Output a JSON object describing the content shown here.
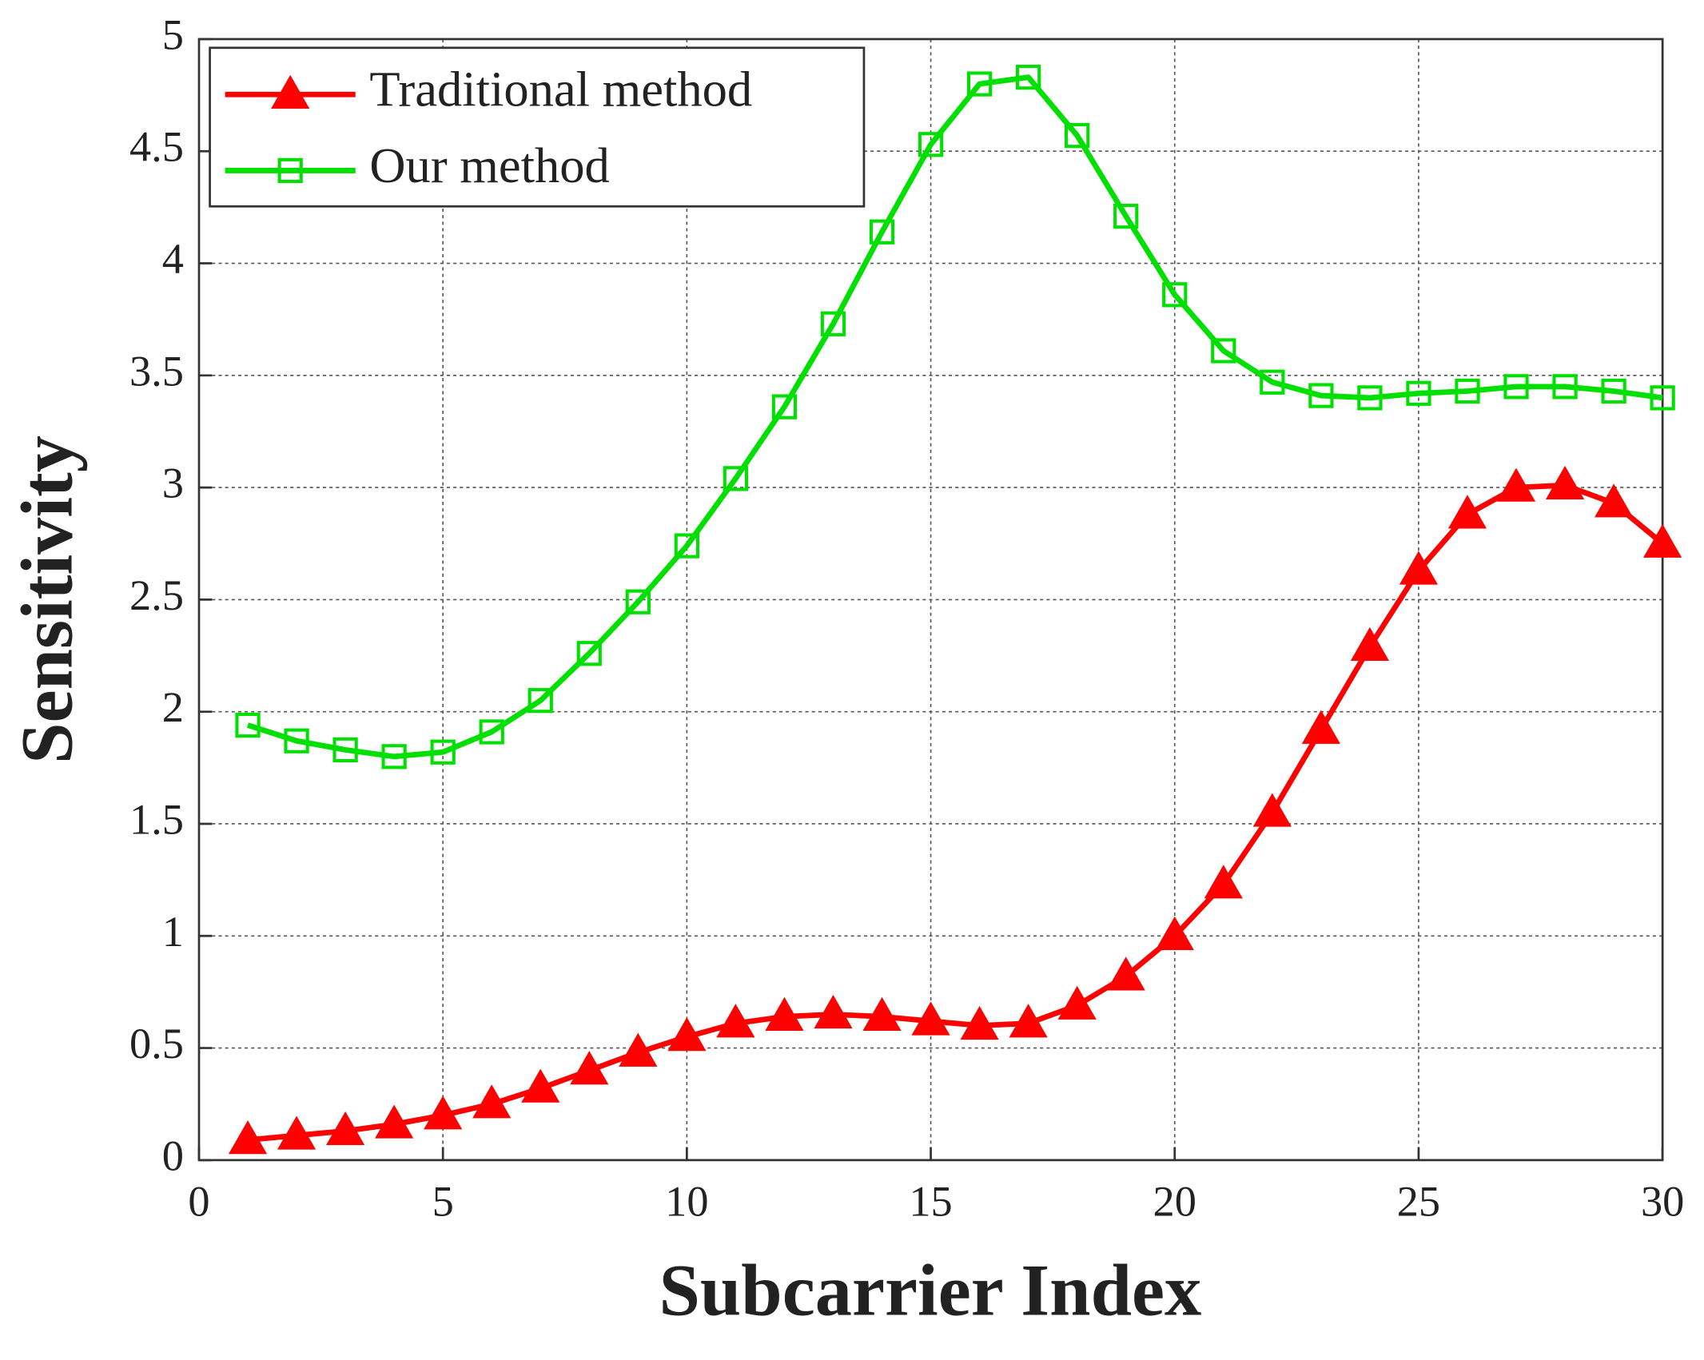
{
  "chart_data": {
    "type": "line",
    "x_label": "Subcarrier Index",
    "y_label": "Sensitivity",
    "x": [
      1,
      2,
      3,
      4,
      5,
      6,
      7,
      8,
      9,
      10,
      11,
      12,
      13,
      14,
      15,
      16,
      17,
      18,
      19,
      20,
      21,
      22,
      23,
      24,
      25,
      26,
      27,
      28,
      29,
      30
    ],
    "series": [
      {
        "name": "Traditional method",
        "color": "#ff0000",
        "marker": "triangle",
        "values": [
          0.09,
          0.11,
          0.13,
          0.16,
          0.2,
          0.25,
          0.32,
          0.4,
          0.48,
          0.55,
          0.61,
          0.64,
          0.65,
          0.64,
          0.62,
          0.6,
          0.61,
          0.69,
          0.82,
          1.0,
          1.23,
          1.55,
          1.92,
          2.29,
          2.63,
          2.88,
          3.0,
          3.01,
          2.93,
          2.75
        ]
      },
      {
        "name": "Our method",
        "color": "#00e000",
        "marker": "square",
        "values": [
          1.94,
          1.87,
          1.83,
          1.8,
          1.82,
          1.91,
          2.05,
          2.26,
          2.49,
          2.74,
          3.04,
          3.36,
          3.73,
          4.14,
          4.53,
          4.8,
          4.83,
          4.57,
          4.21,
          3.86,
          3.61,
          3.47,
          3.41,
          3.4,
          3.42,
          3.43,
          3.45,
          3.45,
          3.43,
          3.4
        ]
      }
    ],
    "xlim": [
      0,
      30
    ],
    "xticks": [
      0,
      5,
      10,
      15,
      20,
      25,
      30
    ],
    "ylim": [
      0,
      5
    ],
    "yticks": [
      0,
      0.5,
      1,
      1.5,
      2,
      2.5,
      3,
      3.5,
      4,
      4.5,
      5
    ],
    "grid": true,
    "legend": "upper-left"
  }
}
